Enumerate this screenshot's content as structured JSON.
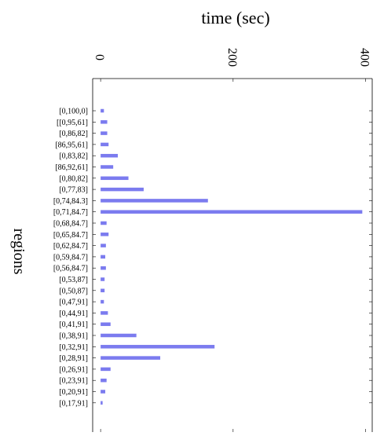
{
  "chart_data": {
    "type": "bar",
    "orientation": "horizontal",
    "title": "time (sec)",
    "xlabel": "time (sec)",
    "ylabel": "regions",
    "xlim": [
      -12,
      410
    ],
    "xticks": [
      0,
      200,
      400
    ],
    "xtick_labels": [
      "0",
      "200",
      "400"
    ],
    "grid": false,
    "bar_color": "#7b7bef",
    "categories": [
      "[0,100,0]",
      "[[0,95,61]",
      "[0,86,82]",
      "[86,95,61]",
      "[0,83,82]",
      "[86,92,61]",
      "[0,80,82]",
      "[0,77,83]",
      "[0,74,84.3]",
      "[0,71,84.7]",
      "[0,68,84.7]",
      "[0,65,84.7]",
      "[0,62,84.7]",
      "[0,59,84.7]",
      "[0,56,84.7]",
      "[0,53,87]",
      "[0,50,87]",
      "[0,47,91]",
      "[0,44,91]",
      "[0,41,91]",
      "[0,38,91]",
      "[0,32,91]",
      "[0,28,91]",
      "[0,26,91]",
      "[0,23,91]",
      "[0,20,91]",
      "[0,17,91]"
    ],
    "values": [
      5,
      10,
      10,
      12,
      26,
      19,
      42,
      65,
      162,
      395,
      9,
      12,
      8,
      7,
      8,
      6,
      6,
      5,
      11,
      15,
      54,
      172,
      90,
      15,
      9,
      7,
      3
    ]
  }
}
